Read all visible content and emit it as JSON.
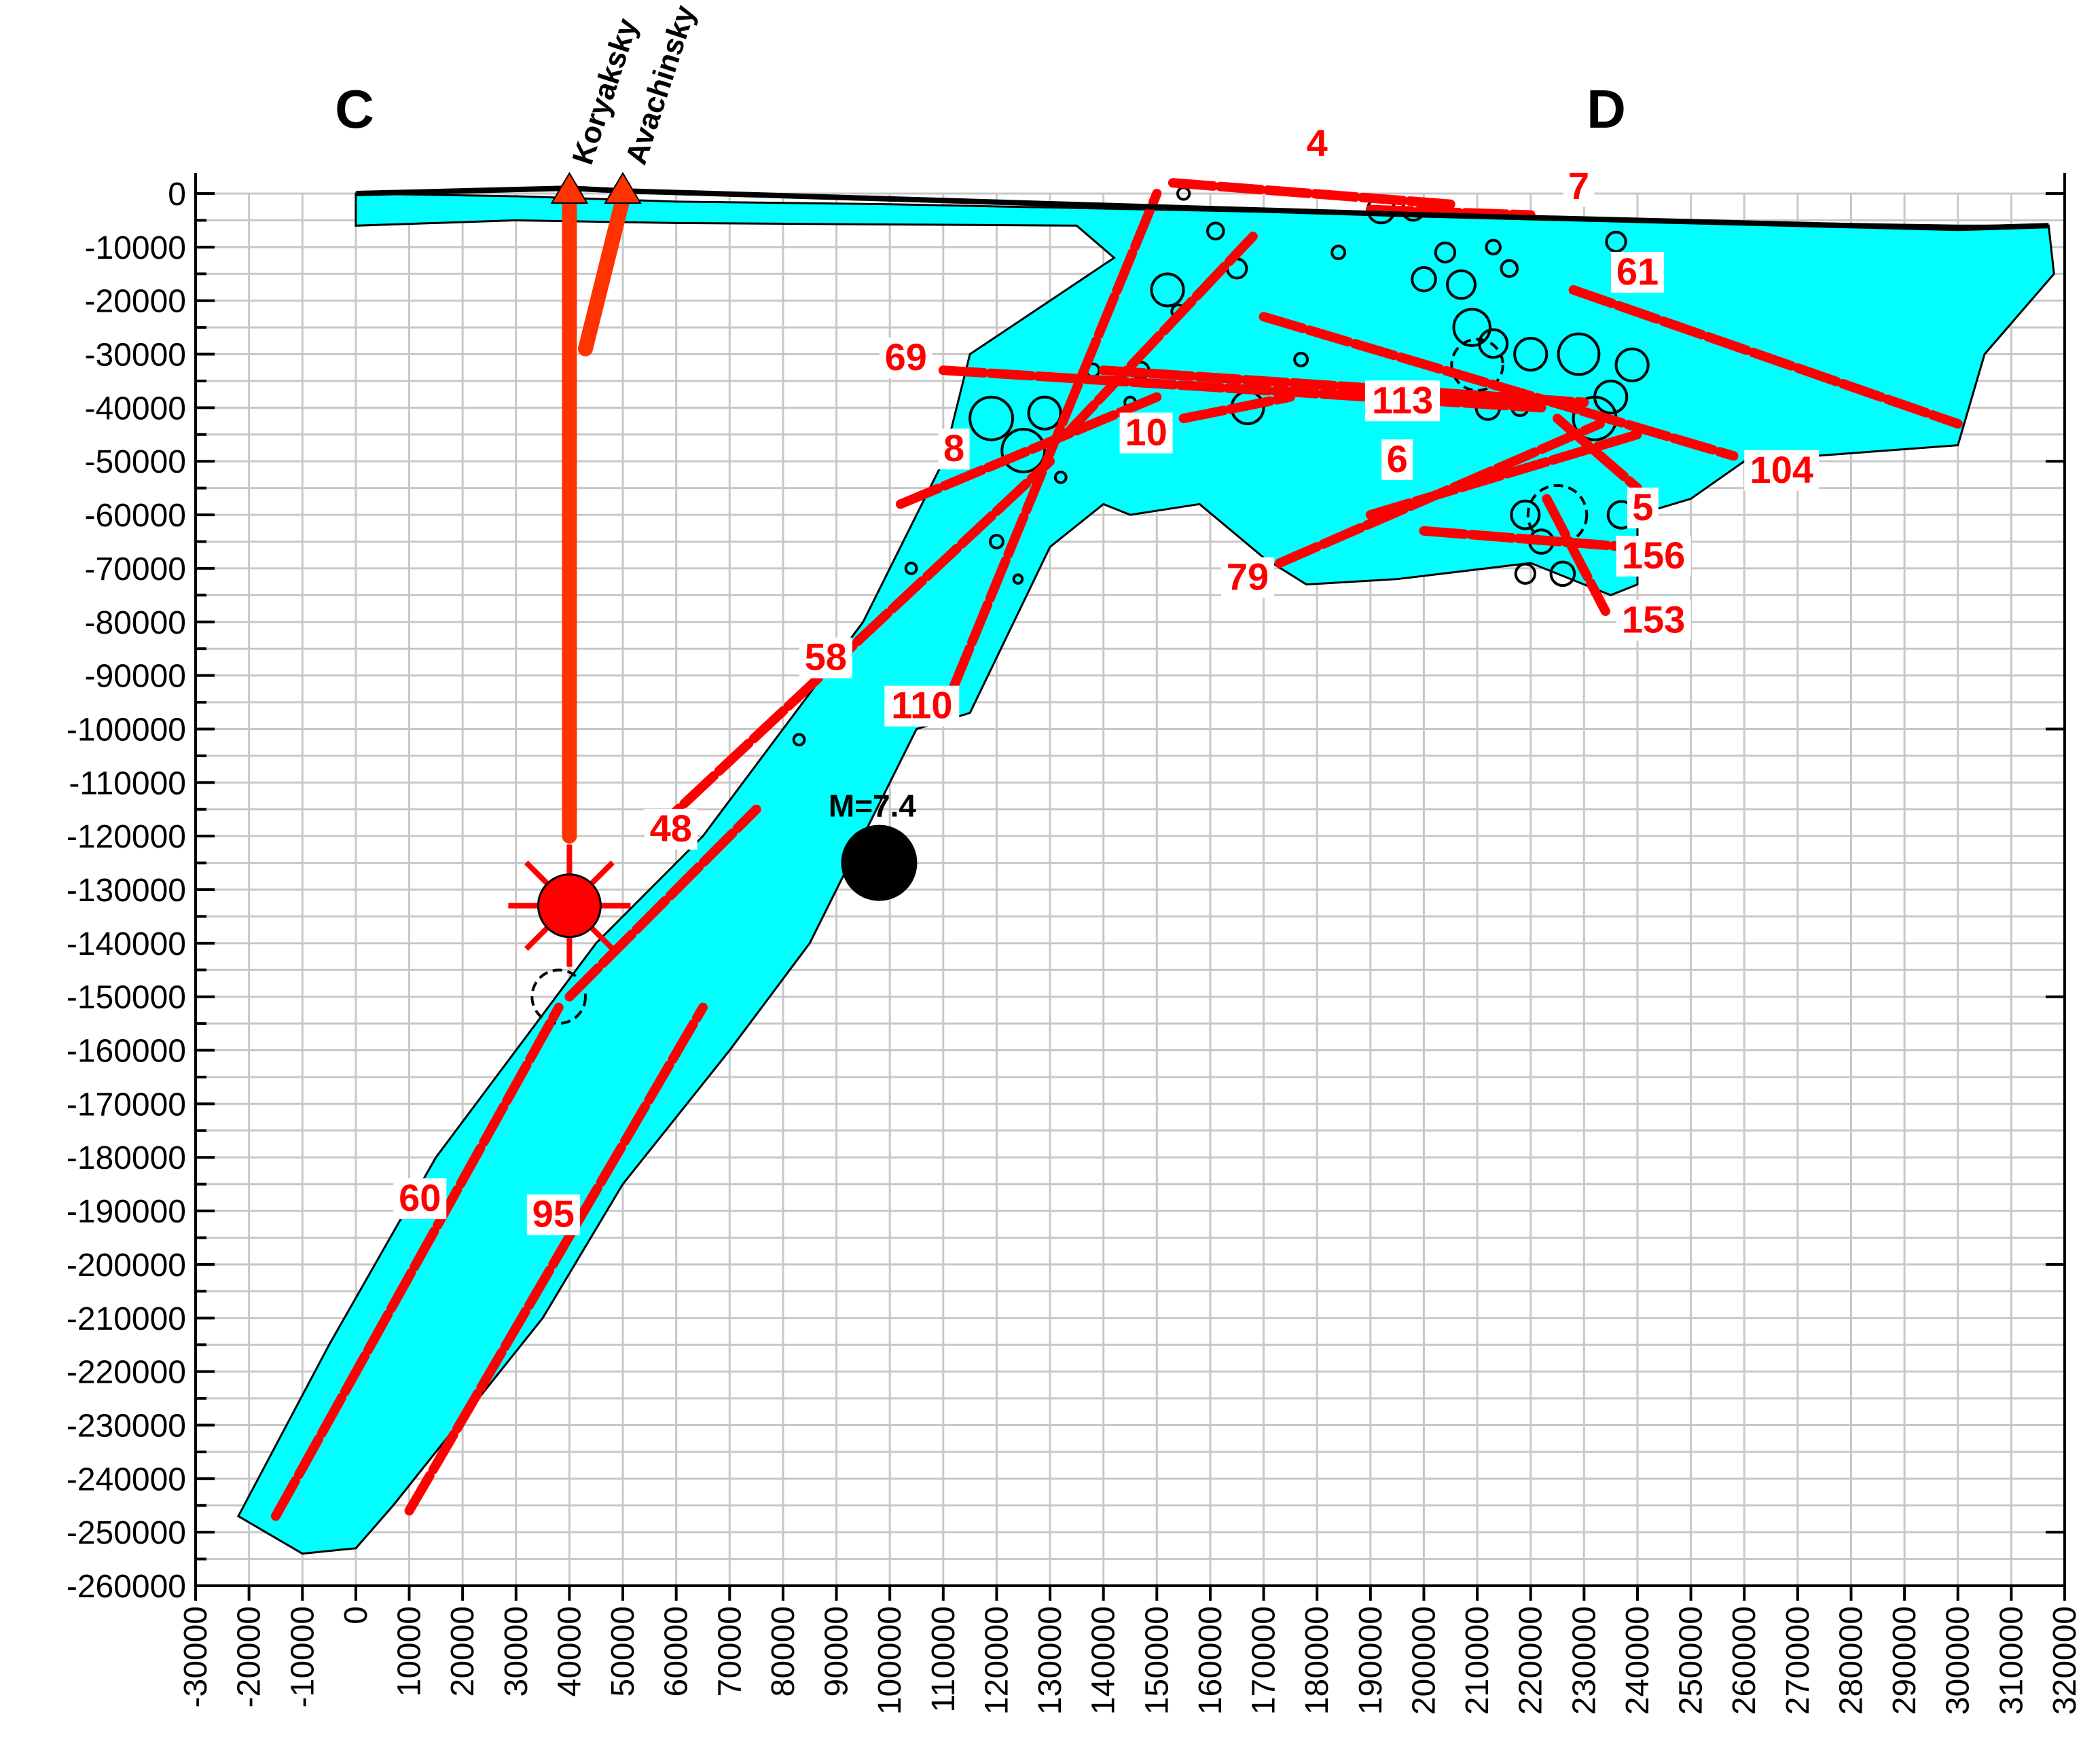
{
  "chart_data": {
    "type": "scatter",
    "title": "",
    "xlabel": "",
    "ylabel": "",
    "xlim": [
      -30000,
      320000
    ],
    "ylim": [
      -260000,
      0
    ],
    "grid": true,
    "x_ticks": [
      "-30000",
      "-20000",
      "-10000",
      "0",
      "10000",
      "20000",
      "30000",
      "40000",
      "50000",
      "60000",
      "70000",
      "80000",
      "90000",
      "100000",
      "110000",
      "120000",
      "130000",
      "140000",
      "150000",
      "160000",
      "170000",
      "180000",
      "190000",
      "200000",
      "210000",
      "220000",
      "230000",
      "240000",
      "250000",
      "260000",
      "270000",
      "280000",
      "290000",
      "300000",
      "310000",
      "320000"
    ],
    "y_ticks": [
      "0",
      "-10000",
      "-20000",
      "-30000",
      "-40000",
      "-50000",
      "-60000",
      "-70000",
      "-80000",
      "-90000",
      "-100000",
      "-110000",
      "-120000",
      "-130000",
      "-140000",
      "-150000",
      "-160000",
      "-170000",
      "-180000",
      "-190000",
      "-200000",
      "-210000",
      "-220000",
      "-230000",
      "-240000",
      "-250000",
      "-260000"
    ],
    "colors": {
      "zone": "#00ffff",
      "lineament": "#ff0000",
      "volcano": "#ff3300",
      "grid": "#c8c8c8",
      "outline": "#000000"
    },
    "profile_ends": {
      "start": "C",
      "end": "D"
    },
    "volcanoes": [
      {
        "name": "Koryaksky",
        "x": 40000,
        "y": 0
      },
      {
        "name": "Avachinsky",
        "x": 50000,
        "y": 0
      }
    ],
    "zone_polygon": [
      [
        0,
        0
      ],
      [
        30000,
        -500
      ],
      [
        60000,
        -1500
      ],
      [
        100000,
        -2000
      ],
      [
        150000,
        -3000
      ],
      [
        200000,
        -4000
      ],
      [
        240000,
        -5000
      ],
      [
        300000,
        -6000
      ],
      [
        317000,
        -6000
      ],
      [
        318000,
        -15000
      ],
      [
        305000,
        -30000
      ],
      [
        300000,
        -47000
      ],
      [
        260000,
        -50000
      ],
      [
        250000,
        -57000
      ],
      [
        240000,
        -60000
      ],
      [
        240000,
        -73000
      ],
      [
        235000,
        -75000
      ],
      [
        220000,
        -69000
      ],
      [
        195000,
        -72000
      ],
      [
        178000,
        -73000
      ],
      [
        170000,
        -68000
      ],
      [
        158000,
        -58000
      ],
      [
        145000,
        -60000
      ],
      [
        140000,
        -58000
      ],
      [
        130000,
        -66000
      ],
      [
        115000,
        -97000
      ],
      [
        105000,
        -100000
      ],
      [
        95000,
        -120000
      ],
      [
        85000,
        -140000
      ],
      [
        70000,
        -160000
      ],
      [
        50000,
        -185000
      ],
      [
        35000,
        -210000
      ],
      [
        15000,
        -235000
      ],
      [
        7000,
        -245000
      ],
      [
        0,
        -253000
      ],
      [
        -10000,
        -254000
      ],
      [
        -22000,
        -247000
      ],
      [
        -5000,
        -215000
      ],
      [
        15000,
        -180000
      ],
      [
        30000,
        -160000
      ],
      [
        45000,
        -140000
      ],
      [
        65000,
        -120000
      ],
      [
        80000,
        -100000
      ],
      [
        95000,
        -80000
      ],
      [
        110000,
        -50000
      ],
      [
        115000,
        -30000
      ],
      [
        130000,
        -20000
      ],
      [
        142000,
        -12000
      ],
      [
        135000,
        -6000
      ],
      [
        60000,
        -5500
      ],
      [
        30000,
        -5000
      ],
      [
        0,
        -6000
      ]
    ],
    "lineaments": [
      {
        "label": "4",
        "x": [
          153000,
          205000
        ],
        "y": [
          2000,
          -2000
        ],
        "label_xy": [
          180000,
          7000
        ]
      },
      {
        "label": "7",
        "x": [
          190000,
          220000
        ],
        "y": [
          -3000,
          -4000
        ],
        "label_xy": [
          229000,
          -1000
        ]
      },
      {
        "label": "61",
        "x": [
          228000,
          300000
        ],
        "y": [
          -18000,
          -43000
        ],
        "label_xy": [
          240000,
          -17000
        ]
      },
      {
        "label": "69",
        "x": [
          110000,
          222000
        ],
        "y": [
          -33000,
          -40000
        ],
        "label_xy": [
          103000,
          -33000
        ]
      },
      {
        "label": "8",
        "x": [
          102000,
          150000
        ],
        "y": [
          -58000,
          -38000
        ],
        "label_xy": [
          112000,
          -50000
        ]
      },
      {
        "label": "10",
        "x": [
          155000,
          175000
        ],
        "y": [
          -42000,
          -38000
        ],
        "label_xy": [
          148000,
          -47000
        ]
      },
      {
        "label": "113",
        "x": [
          140000,
          230000
        ],
        "y": [
          -33000,
          -39000
        ],
        "label_xy": [
          196000,
          -41000
        ]
      },
      {
        "label": "6",
        "x": [
          190000,
          240000
        ],
        "y": [
          -60000,
          -45000
        ],
        "label_xy": [
          195000,
          -52000
        ]
      },
      {
        "label": "104",
        "x": [
          170000,
          258000
        ],
        "y": [
          -23000,
          -49000
        ],
        "label_xy": [
          267000,
          -54000
        ]
      },
      {
        "label": "5",
        "x": [
          225000,
          240000
        ],
        "y": [
          -42000,
          -55000
        ],
        "label_xy": [
          241000,
          -61000
        ]
      },
      {
        "label": "79",
        "x": [
          173000,
          233000
        ],
        "y": [
          -69000,
          -43000
        ],
        "label_xy": [
          167000,
          -74000
        ]
      },
      {
        "label": "156",
        "x": [
          200000,
          238000
        ],
        "y": [
          -63000,
          -66000
        ],
        "label_xy": [
          243000,
          -70000
        ]
      },
      {
        "label": "153",
        "x": [
          223000,
          234000
        ],
        "y": [
          -57000,
          -78000
        ],
        "label_xy": [
          243000,
          -82000
        ]
      },
      {
        "label": "58",
        "x": [
          55000,
          130000
        ],
        "y": [
          -120000,
          -50000
        ],
        "label_xy": [
          88000,
          -89000
        ]
      },
      {
        "label": "110",
        "x": [
          112000,
          150000
        ],
        "y": [
          -92000,
          0
        ],
        "label_xy": [
          106000,
          -98000
        ]
      },
      {
        "label": "48",
        "x": [
          40000,
          75000
        ],
        "y": [
          -150000,
          -115000
        ],
        "label_xy": [
          59000,
          -121000
        ]
      },
      {
        "label": "60",
        "x": [
          -15000,
          38000
        ],
        "y": [
          -247000,
          -152000
        ],
        "label_xy": [
          12000,
          -190000
        ]
      },
      {
        "label": "95",
        "x": [
          10000,
          65000
        ],
        "y": [
          -246000,
          -152000
        ],
        "label_xy": [
          37000,
          -193000
        ]
      },
      {
        "label": "",
        "x": [
          133000,
          168000
        ],
        "y": [
          -45000,
          -8000
        ],
        "label_xy": [
          0,
          0
        ]
      }
    ],
    "conduits": [
      {
        "x": [
          40000,
          40000
        ],
        "y": [
          -1000,
          -120000
        ]
      },
      {
        "x": [
          50000,
          43000
        ],
        "y": [
          -1000,
          -29000
        ]
      }
    ],
    "magma_source": {
      "x": 40000,
      "y": -133000
    },
    "main_event": {
      "label": "M=7.4",
      "x": 98000,
      "y": -125000
    },
    "hypocenters": [
      {
        "x": 38000,
        "y": -150000,
        "r": 5000
      },
      {
        "x": 83000,
        "y": -102000,
        "r": 1000
      },
      {
        "x": 104000,
        "y": -70000,
        "r": 1000
      },
      {
        "x": 120000,
        "y": -65000,
        "r": 1200
      },
      {
        "x": 124000,
        "y": -72000,
        "r": 800
      },
      {
        "x": 119000,
        "y": -42000,
        "r": 4000
      },
      {
        "x": 125000,
        "y": -48000,
        "r": 4000
      },
      {
        "x": 129000,
        "y": -41000,
        "r": 3000
      },
      {
        "x": 132000,
        "y": -53000,
        "r": 1000
      },
      {
        "x": 138000,
        "y": -33000,
        "r": 1200
      },
      {
        "x": 145000,
        "y": -39000,
        "r": 1000
      },
      {
        "x": 147000,
        "y": -33000,
        "r": 1500
      },
      {
        "x": 152000,
        "y": -18000,
        "r": 3000
      },
      {
        "x": 154000,
        "y": -22000,
        "r": 1200
      },
      {
        "x": 161000,
        "y": -7000,
        "r": 1500
      },
      {
        "x": 165000,
        "y": -14000,
        "r": 1800
      },
      {
        "x": 167000,
        "y": -40000,
        "r": 3000
      },
      {
        "x": 177000,
        "y": -31000,
        "r": 1200
      },
      {
        "x": 184000,
        "y": -11000,
        "r": 1200
      },
      {
        "x": 192000,
        "y": -3000,
        "r": 2500
      },
      {
        "x": 198000,
        "y": -3000,
        "r": 2000
      },
      {
        "x": 200000,
        "y": -16000,
        "r": 2200
      },
      {
        "x": 204000,
        "y": -11000,
        "r": 1800
      },
      {
        "x": 207000,
        "y": -17000,
        "r": 2600
      },
      {
        "x": 209000,
        "y": -25000,
        "r": 3400
      },
      {
        "x": 210000,
        "y": -32000,
        "r": 4800
      },
      {
        "x": 213000,
        "y": -28000,
        "r": 2600
      },
      {
        "x": 212000,
        "y": -40000,
        "r": 2200
      },
      {
        "x": 220000,
        "y": -30000,
        "r": 3000
      },
      {
        "x": 229000,
        "y": -30000,
        "r": 3800
      },
      {
        "x": 225000,
        "y": -60000,
        "r": 5500
      },
      {
        "x": 219000,
        "y": -60000,
        "r": 2600
      },
      {
        "x": 222000,
        "y": -65000,
        "r": 2200
      },
      {
        "x": 226000,
        "y": -71000,
        "r": 2200
      },
      {
        "x": 219000,
        "y": -71000,
        "r": 1800
      },
      {
        "x": 232000,
        "y": -42000,
        "r": 4000
      },
      {
        "x": 235000,
        "y": -38000,
        "r": 3000
      },
      {
        "x": 237000,
        "y": -60000,
        "r": 2500
      },
      {
        "x": 239000,
        "y": -32000,
        "r": 3000
      },
      {
        "x": 236000,
        "y": -9000,
        "r": 1800
      },
      {
        "x": 218000,
        "y": -40000,
        "r": 1500
      },
      {
        "x": 216000,
        "y": -14000,
        "r": 1500
      },
      {
        "x": 213000,
        "y": -10000,
        "r": 1300
      },
      {
        "x": 155000,
        "y": 0,
        "r": 1100
      }
    ]
  }
}
